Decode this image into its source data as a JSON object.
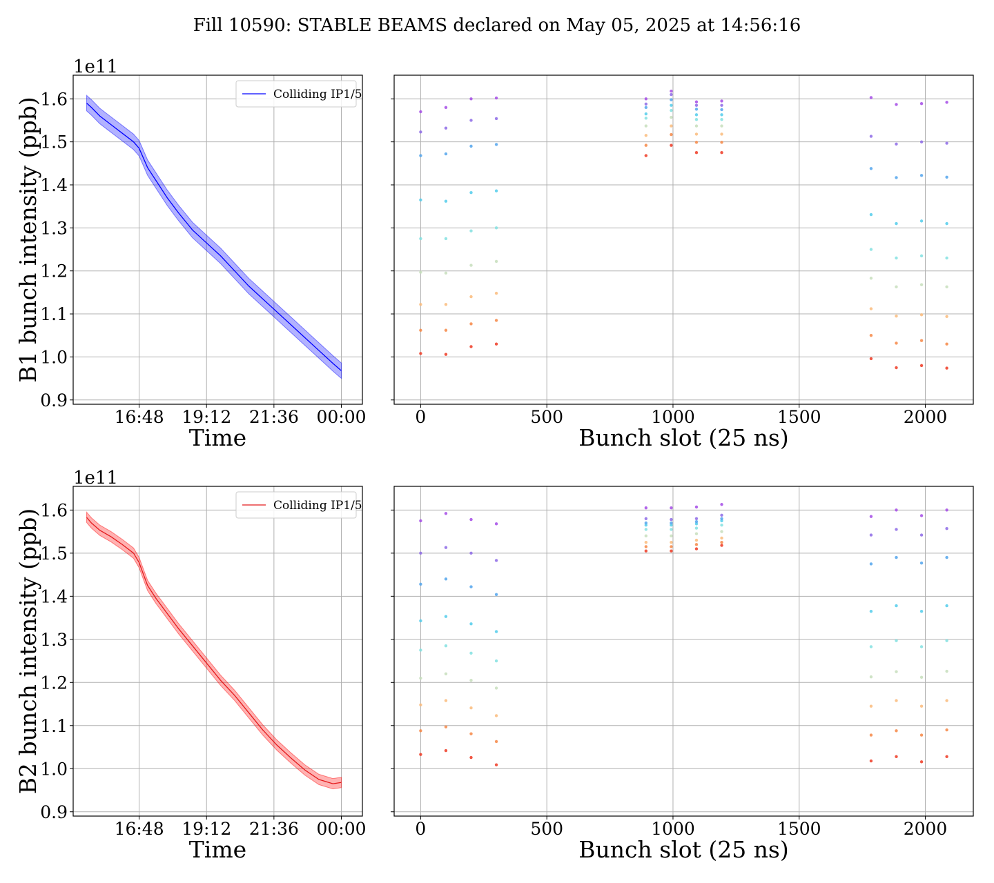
{
  "figure": {
    "title": "Fill 10590: STABLE BEAMS declared on May 05, 2025 at 14:56:16"
  },
  "chart_data": [
    {
      "type": "line",
      "beam": "B1",
      "title": "",
      "xlabel": "Time",
      "ylabel": "B1 bunch intensity (ppb)",
      "y_offset_label": "1e11",
      "x_ticks": [
        "16:48",
        "19:12",
        "21:36",
        "00:00"
      ],
      "x_tick_hours": [
        16.8,
        19.2,
        21.6,
        24.0
      ],
      "xlim_hours": [
        14.45,
        24.75
      ],
      "ylim": [
        0.89,
        1.655
      ],
      "y_ticks": [
        0.9,
        1.0,
        1.1,
        1.2,
        1.3,
        1.4,
        1.5,
        1.6
      ],
      "y_tick_labels": [
        "0.9",
        "1.0",
        "1.1",
        "1.2",
        "1.3",
        "1.4",
        "1.5",
        "1.6"
      ],
      "grid": true,
      "legend": "top-right",
      "color": "#0000ff",
      "band_color": "#0000ff",
      "series": [
        {
          "name": "Colliding IP1/5",
          "x_hours": [
            14.93,
            15.1,
            15.4,
            15.8,
            16.2,
            16.6,
            16.8,
            16.9,
            17.1,
            17.4,
            17.8,
            18.2,
            18.7,
            19.2,
            19.7,
            20.2,
            20.7,
            21.2,
            21.7,
            22.2,
            22.7,
            23.2,
            23.7,
            24.0
          ],
          "values": [
            1.59,
            1.58,
            1.56,
            1.54,
            1.52,
            1.5,
            1.485,
            1.47,
            1.44,
            1.41,
            1.37,
            1.335,
            1.295,
            1.265,
            1.235,
            1.2,
            1.165,
            1.135,
            1.105,
            1.075,
            1.045,
            1.015,
            0.985,
            0.968
          ],
          "band_half_width": 0.018
        }
      ]
    },
    {
      "type": "scatter",
      "beam": "B1",
      "title": "",
      "xlabel": "Bunch slot (25 ns)",
      "ylabel": "",
      "x_ticks": [
        0,
        500,
        1000,
        1500,
        2000
      ],
      "x_tick_labels": [
        "0",
        "500",
        "1000",
        "1500",
        "2000"
      ],
      "xlim": [
        -105,
        2190
      ],
      "ylim": [
        0.89,
        1.655
      ],
      "y_ticks": [
        0.9,
        1.0,
        1.1,
        1.2,
        1.3,
        1.4,
        1.5,
        1.6
      ],
      "grid": true,
      "colormap": "rainbow",
      "color_stops": [
        "#ef3a23",
        "#f7924a",
        "#fbc98b",
        "#a7ead9",
        "#5ed8e9",
        "#3fb7ee",
        "#8a6ee6",
        "#a44be6"
      ],
      "points": [
        {
          "x": 0,
          "y": [
            1.008,
            1.062,
            1.122,
            1.197,
            1.275,
            1.365,
            1.468,
            1.523,
            1.57
          ]
        },
        {
          "x": 100,
          "y": [
            1.006,
            1.062,
            1.122,
            1.195,
            1.275,
            1.362,
            1.472,
            1.532,
            1.58
          ]
        },
        {
          "x": 200,
          "y": [
            1.024,
            1.077,
            1.14,
            1.213,
            1.293,
            1.382,
            1.49,
            1.55,
            1.6
          ]
        },
        {
          "x": 300,
          "y": [
            1.03,
            1.085,
            1.148,
            1.222,
            1.3,
            1.386,
            1.494,
            1.554,
            1.602
          ]
        },
        {
          "x": 893,
          "y": [
            1.468,
            1.492,
            1.515,
            1.537,
            1.555,
            1.565,
            1.58,
            1.588,
            1.6
          ]
        },
        {
          "x": 993,
          "y": [
            1.492,
            1.517,
            1.537,
            1.557,
            1.573,
            1.585,
            1.598,
            1.61,
            1.618
          ]
        },
        {
          "x": 1093,
          "y": [
            1.475,
            1.499,
            1.518,
            1.537,
            1.552,
            1.563,
            1.576,
            1.585,
            1.593
          ]
        },
        {
          "x": 1193,
          "y": [
            1.475,
            1.499,
            1.518,
            1.537,
            1.552,
            1.563,
            1.575,
            1.585,
            1.595
          ]
        },
        {
          "x": 1785,
          "y": [
            0.996,
            1.05,
            1.112,
            1.183,
            1.25,
            1.331,
            1.438,
            1.513,
            1.603
          ]
        },
        {
          "x": 1885,
          "y": [
            0.975,
            1.032,
            1.095,
            1.163,
            1.23,
            1.31,
            1.417,
            1.495,
            1.587
          ]
        },
        {
          "x": 1985,
          "y": [
            0.98,
            1.038,
            1.098,
            1.168,
            1.235,
            1.316,
            1.422,
            1.5,
            1.589
          ]
        },
        {
          "x": 2085,
          "y": [
            0.974,
            1.03,
            1.094,
            1.163,
            1.23,
            1.31,
            1.418,
            1.497,
            1.592
          ]
        }
      ]
    },
    {
      "type": "line",
      "beam": "B2",
      "title": "",
      "xlabel": "Time",
      "ylabel": "B2 bunch intensity (ppb)",
      "y_offset_label": "1e11",
      "x_ticks": [
        "16:48",
        "19:12",
        "21:36",
        "00:00"
      ],
      "x_tick_hours": [
        16.8,
        19.2,
        21.6,
        24.0
      ],
      "xlim_hours": [
        14.45,
        24.75
      ],
      "ylim": [
        0.89,
        1.655
      ],
      "y_ticks": [
        0.9,
        1.0,
        1.1,
        1.2,
        1.3,
        1.4,
        1.5,
        1.6
      ],
      "y_tick_labels": [
        "0.9",
        "1.0",
        "1.1",
        "1.2",
        "1.3",
        "1.4",
        "1.5",
        "1.6"
      ],
      "grid": true,
      "legend": "top-right",
      "color": "#e41a1c",
      "band_color": "#ff0000",
      "series": [
        {
          "name": "Colliding IP1/5",
          "x_hours": [
            14.93,
            15.1,
            15.4,
            15.8,
            16.2,
            16.6,
            16.8,
            16.9,
            17.1,
            17.4,
            17.8,
            18.2,
            18.7,
            19.2,
            19.7,
            20.2,
            20.7,
            21.2,
            21.7,
            22.2,
            22.7,
            23.2,
            23.7,
            24.0
          ],
          "values": [
            1.583,
            1.57,
            1.553,
            1.538,
            1.52,
            1.5,
            1.478,
            1.46,
            1.425,
            1.395,
            1.36,
            1.325,
            1.285,
            1.245,
            1.205,
            1.17,
            1.13,
            1.09,
            1.055,
            1.025,
            0.997,
            0.975,
            0.965,
            0.968
          ],
          "band_half_width": 0.012
        }
      ]
    },
    {
      "type": "scatter",
      "beam": "B2",
      "title": "",
      "xlabel": "Bunch slot (25 ns)",
      "ylabel": "",
      "x_ticks": [
        0,
        500,
        1000,
        1500,
        2000
      ],
      "x_tick_labels": [
        "0",
        "500",
        "1000",
        "1500",
        "2000"
      ],
      "xlim": [
        -105,
        2190
      ],
      "ylim": [
        0.89,
        1.655
      ],
      "y_ticks": [
        0.9,
        1.0,
        1.1,
        1.2,
        1.3,
        1.4,
        1.5,
        1.6
      ],
      "grid": true,
      "colormap": "rainbow",
      "color_stops": [
        "#ef3a23",
        "#f7924a",
        "#fbc98b",
        "#a7ead9",
        "#5ed8e9",
        "#3fb7ee",
        "#8a6ee6",
        "#a44be6"
      ],
      "points": [
        {
          "x": 0,
          "y": [
            1.033,
            1.088,
            1.148,
            1.21,
            1.275,
            1.343,
            1.428,
            1.5,
            1.575
          ]
        },
        {
          "x": 100,
          "y": [
            1.042,
            1.097,
            1.158,
            1.22,
            1.285,
            1.353,
            1.44,
            1.513,
            1.592
          ]
        },
        {
          "x": 200,
          "y": [
            1.026,
            1.081,
            1.141,
            1.205,
            1.268,
            1.336,
            1.422,
            1.5,
            1.578
          ]
        },
        {
          "x": 300,
          "y": [
            1.009,
            1.063,
            1.123,
            1.187,
            1.25,
            1.318,
            1.404,
            1.483,
            1.568
          ]
        },
        {
          "x": 893,
          "y": [
            1.505,
            1.515,
            1.525,
            1.54,
            1.555,
            1.565,
            1.57,
            1.58,
            1.605
          ]
        },
        {
          "x": 993,
          "y": [
            1.505,
            1.515,
            1.525,
            1.54,
            1.555,
            1.565,
            1.57,
            1.578,
            1.605
          ]
        },
        {
          "x": 1093,
          "y": [
            1.51,
            1.52,
            1.53,
            1.545,
            1.558,
            1.568,
            1.573,
            1.58,
            1.607
          ]
        },
        {
          "x": 1193,
          "y": [
            1.518,
            1.525,
            1.535,
            1.55,
            1.565,
            1.575,
            1.58,
            1.588,
            1.613
          ]
        },
        {
          "x": 1785,
          "y": [
            1.018,
            1.078,
            1.145,
            1.213,
            1.283,
            1.365,
            1.475,
            1.542,
            1.585
          ]
        },
        {
          "x": 1885,
          "y": [
            1.028,
            1.088,
            1.158,
            1.225,
            1.297,
            1.378,
            1.49,
            1.555,
            1.6
          ]
        },
        {
          "x": 1985,
          "y": [
            1.016,
            1.078,
            1.145,
            1.212,
            1.283,
            1.365,
            1.477,
            1.542,
            1.587
          ]
        },
        {
          "x": 2085,
          "y": [
            1.028,
            1.09,
            1.158,
            1.226,
            1.297,
            1.378,
            1.49,
            1.557,
            1.6
          ]
        }
      ]
    }
  ]
}
